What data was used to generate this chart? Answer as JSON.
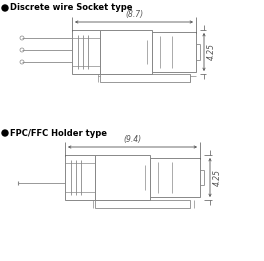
{
  "bg_color": "#ffffff",
  "line_color": "#888888",
  "dim_color": "#555555",
  "title1": "Discrete wire Socket type",
  "title2": "FPC/FFC Holder type",
  "dim1_width": "(8.7)",
  "dim2_width": "(9.4)",
  "dim_height": "4.25",
  "bullet_color": "#000000",
  "title_fontsize": 6.0,
  "dim_fontsize": 5.5
}
